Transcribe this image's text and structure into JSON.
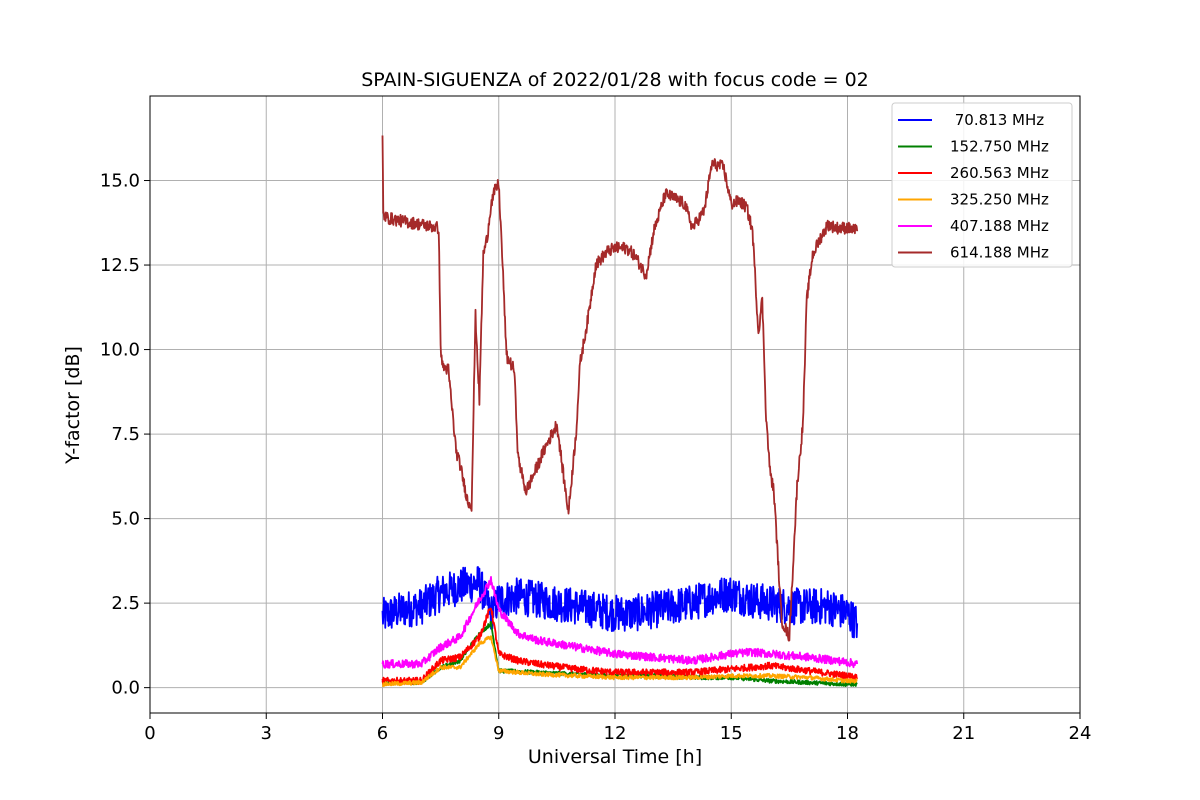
{
  "chart_data": {
    "type": "line",
    "title": "SPAIN-SIGUENZA of 2022/01/28 with focus code = 02",
    "xlabel": "Universal Time [h]",
    "ylabel": "Y-factor [dB]",
    "xlim": [
      0,
      24
    ],
    "ylim": [
      -0.75,
      17.5
    ],
    "xticks": [
      0,
      3,
      6,
      9,
      12,
      15,
      18,
      21,
      24
    ],
    "yticks": [
      0.0,
      2.5,
      5.0,
      7.5,
      10.0,
      12.5,
      15.0
    ],
    "xtick_labels": [
      "0",
      "3",
      "6",
      "9",
      "12",
      "15",
      "18",
      "21",
      "24"
    ],
    "ytick_labels": [
      "0.0",
      "2.5",
      "5.0",
      "7.5",
      "10.0",
      "12.5",
      "15.0"
    ],
    "grid": true,
    "legend_position": "top-right",
    "series": [
      {
        "name": " 70.813 MHz",
        "color": "#0000ff",
        "noise": 0.55,
        "x": [
          6.0,
          6.5,
          7.0,
          7.5,
          8.0,
          8.5,
          8.8,
          9.0,
          9.5,
          10.0,
          10.5,
          11.0,
          11.5,
          12.0,
          12.5,
          13.0,
          13.5,
          14.0,
          14.5,
          15.0,
          15.5,
          16.0,
          16.5,
          17.0,
          17.5,
          18.0,
          18.25
        ],
        "y": [
          2.1,
          2.3,
          2.4,
          2.8,
          3.0,
          3.1,
          2.2,
          2.6,
          2.7,
          2.6,
          2.5,
          2.4,
          2.3,
          2.2,
          2.2,
          2.3,
          2.4,
          2.5,
          2.7,
          2.8,
          2.6,
          2.5,
          2.4,
          2.4,
          2.4,
          2.2,
          1.9
        ]
      },
      {
        "name": "152.750 MHz",
        "color": "#008000",
        "noise": 0.06,
        "x": [
          6.0,
          7.0,
          7.5,
          8.0,
          8.5,
          8.8,
          9.0,
          10.0,
          11.0,
          12.0,
          13.0,
          14.0,
          15.0,
          16.0,
          17.0,
          18.0,
          18.25
        ],
        "y": [
          0.15,
          0.15,
          0.6,
          0.8,
          1.6,
          1.9,
          0.5,
          0.45,
          0.4,
          0.35,
          0.35,
          0.3,
          0.3,
          0.2,
          0.15,
          0.1,
          0.1
        ]
      },
      {
        "name": "260.563 MHz",
        "color": "#ff0000",
        "noise": 0.1,
        "x": [
          6.0,
          7.0,
          7.5,
          8.0,
          8.5,
          8.8,
          9.0,
          9.5,
          10.0,
          11.0,
          12.0,
          13.0,
          14.0,
          15.0,
          16.0,
          17.0,
          18.0,
          18.25
        ],
        "y": [
          0.2,
          0.2,
          0.8,
          0.9,
          1.5,
          2.4,
          1.0,
          0.8,
          0.7,
          0.55,
          0.45,
          0.45,
          0.45,
          0.55,
          0.65,
          0.5,
          0.35,
          0.3
        ]
      },
      {
        "name": "325.250 MHz",
        "color": "#ffa500",
        "noise": 0.06,
        "x": [
          6.0,
          7.0,
          7.5,
          8.0,
          8.5,
          8.8,
          9.0,
          10.0,
          11.0,
          12.0,
          13.0,
          14.0,
          15.0,
          16.0,
          17.0,
          18.0,
          18.25
        ],
        "y": [
          0.1,
          0.15,
          0.6,
          0.6,
          1.3,
          1.5,
          0.5,
          0.4,
          0.35,
          0.3,
          0.3,
          0.3,
          0.35,
          0.35,
          0.3,
          0.2,
          0.2
        ]
      },
      {
        "name": "407.188 MHz",
        "color": "#ff00ff",
        "noise": 0.12,
        "x": [
          6.0,
          7.0,
          7.5,
          8.0,
          8.5,
          8.8,
          9.0,
          9.5,
          10.0,
          11.0,
          12.0,
          13.0,
          14.0,
          15.0,
          15.5,
          16.0,
          17.0,
          18.0,
          18.25
        ],
        "y": [
          0.7,
          0.7,
          1.2,
          1.5,
          2.6,
          3.2,
          2.3,
          1.6,
          1.4,
          1.2,
          1.0,
          0.9,
          0.8,
          1.0,
          1.05,
          1.0,
          0.9,
          0.75,
          0.7
        ]
      },
      {
        "name": "614.188 MHz",
        "color": "#a52a2a",
        "noise": 0.18,
        "x": [
          6.0,
          6.02,
          6.1,
          6.5,
          7.0,
          7.45,
          7.5,
          7.55,
          7.7,
          7.9,
          8.0,
          8.2,
          8.3,
          8.4,
          8.5,
          8.6,
          8.7,
          8.8,
          8.9,
          9.0,
          9.1,
          9.2,
          9.4,
          9.5,
          9.7,
          9.9,
          10.2,
          10.5,
          10.7,
          10.8,
          11.0,
          11.1,
          11.3,
          11.5,
          11.8,
          12.0,
          12.3,
          12.5,
          12.8,
          13.0,
          13.3,
          13.5,
          13.8,
          14.0,
          14.3,
          14.5,
          14.8,
          15.0,
          15.2,
          15.4,
          15.55,
          15.7,
          15.8,
          15.9,
          16.0,
          16.1,
          16.3,
          16.5,
          16.7,
          16.85,
          16.95,
          17.1,
          17.3,
          17.5,
          17.7,
          18.0,
          18.25
        ],
        "y": [
          16.3,
          14.0,
          13.9,
          13.8,
          13.7,
          13.6,
          10.1,
          9.5,
          9.4,
          7.0,
          6.6,
          5.5,
          5.4,
          11.0,
          8.5,
          12.8,
          13.3,
          14.3,
          14.7,
          14.9,
          12.5,
          9.8,
          9.4,
          6.8,
          5.8,
          6.3,
          7.1,
          7.8,
          6.0,
          5.2,
          7.6,
          9.6,
          10.9,
          12.5,
          12.9,
          13.0,
          13.0,
          12.8,
          12.2,
          13.5,
          14.6,
          14.5,
          14.3,
          13.6,
          14.1,
          15.5,
          15.4,
          14.3,
          14.4,
          14.2,
          13.5,
          10.5,
          11.5,
          8.0,
          6.4,
          5.8,
          2.0,
          1.5,
          6.0,
          7.8,
          11.5,
          12.8,
          13.3,
          13.7,
          13.6,
          13.6,
          13.5
        ]
      }
    ]
  }
}
